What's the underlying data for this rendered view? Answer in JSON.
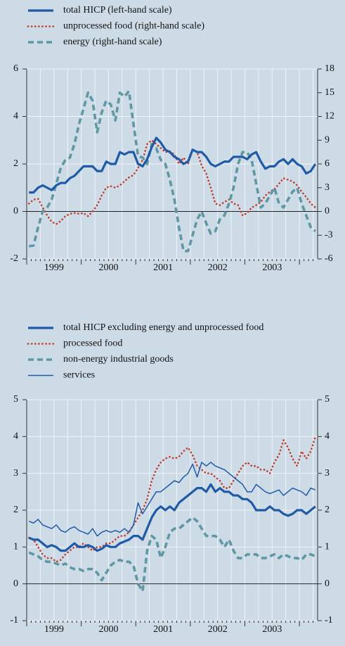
{
  "chart_data": [
    {
      "type": "line",
      "categories": [
        null,
        null,
        null,
        null,
        null,
        null,
        "1999",
        null,
        null,
        null,
        null,
        null,
        null,
        null,
        null,
        null,
        null,
        null,
        "2000",
        null,
        null,
        null,
        null,
        null,
        null,
        null,
        null,
        null,
        null,
        null,
        "2001",
        null,
        null,
        null,
        null,
        null,
        null,
        null,
        null,
        null,
        null,
        null,
        "2002",
        null,
        null,
        null,
        null,
        null,
        null,
        null,
        null,
        null,
        null,
        null,
        "2003",
        null,
        null,
        null,
        null,
        null,
        null,
        null,
        null,
        null
      ],
      "ylim": [
        -2,
        6
      ],
      "yticks": [
        -2,
        0,
        2,
        4,
        6
      ],
      "y2lim": [
        -6,
        18
      ],
      "y2ticks": [
        -6,
        -3,
        0,
        3,
        6,
        9,
        12,
        15,
        18
      ],
      "grid": true,
      "series": [
        {
          "name": "total HICP (left-hand scale)",
          "color": "#1f5aa6",
          "style": "solid",
          "weight": "thick",
          "values": [
            0.8,
            0.8,
            1.0,
            1.1,
            1.0,
            0.9,
            1.1,
            1.2,
            1.2,
            1.4,
            1.5,
            1.7,
            1.9,
            1.9,
            1.9,
            1.7,
            1.7,
            2.1,
            2.0,
            2.0,
            2.5,
            2.4,
            2.5,
            2.5,
            2.0,
            1.9,
            2.2,
            2.7,
            3.1,
            2.9,
            2.6,
            2.5,
            2.3,
            2.2,
            2.0,
            2.1,
            2.6,
            2.5,
            2.5,
            2.3,
            2.0,
            1.9,
            2.0,
            2.1,
            2.1,
            2.3,
            2.3,
            2.3,
            2.2,
            2.4,
            2.5,
            2.1,
            1.8,
            1.9,
            1.9,
            2.1,
            2.2,
            2.0,
            2.2,
            2.0,
            1.9,
            1.6,
            1.7,
            2.0
          ]
        },
        {
          "name": "unprocessed food (right-hand scale)",
          "color": "#c0392b",
          "style": "dotted",
          "weight": "thick",
          "axis": "y2",
          "values": [
            1.0,
            1.5,
            1.6,
            0.5,
            -0.5,
            -1.3,
            -1.6,
            -1.2,
            -0.6,
            -0.3,
            -0.2,
            -0.3,
            -0.2,
            -0.6,
            0.0,
            0.8,
            2.0,
            3.0,
            3.2,
            3.0,
            3.3,
            3.8,
            4.3,
            4.6,
            5.5,
            6.5,
            8.5,
            9.0,
            8.5,
            8.0,
            7.5,
            7.6,
            7.2,
            6.0,
            6.8,
            6.0,
            7.8,
            7.5,
            5.8,
            4.8,
            3.0,
            1.0,
            0.8,
            1.2,
            1.5,
            1.0,
            0.8,
            -0.5,
            -0.2,
            0.5,
            0.8,
            1.2,
            2.0,
            2.5,
            2.8,
            3.5,
            4.2,
            4.0,
            3.8,
            3.3,
            2.5,
            1.8,
            1.0,
            0.5
          ]
        },
        {
          "name": "energy (right-hand scale)",
          "color": "#5f97a3",
          "style": "dashed",
          "weight": "thick",
          "axis": "y2",
          "values": [
            -4.4,
            -4.3,
            -2.0,
            0.0,
            0.5,
            1.5,
            3.5,
            5.5,
            6.5,
            6.8,
            8.5,
            11.0,
            13.0,
            15.0,
            14.0,
            10.0,
            12.5,
            14.0,
            13.5,
            11.5,
            15.0,
            14.5,
            15.2,
            11.0,
            7.0,
            6.8,
            6.0,
            8.5,
            8.0,
            6.5,
            6.0,
            4.0,
            1.5,
            -2.0,
            -5.0,
            -5.0,
            -3.0,
            -1.0,
            0.0,
            -1.5,
            -2.8,
            -2.5,
            -1.0,
            -0.5,
            1.0,
            3.0,
            6.0,
            7.5,
            7.5,
            6.5,
            3.5,
            0.5,
            1.0,
            2.0,
            3.0,
            1.0,
            0.5,
            1.5,
            2.5,
            3.0,
            1.0,
            -0.5,
            -2.0,
            -2.5
          ]
        }
      ]
    },
    {
      "type": "line",
      "categories": [
        null,
        null,
        null,
        null,
        null,
        null,
        "1999",
        null,
        null,
        null,
        null,
        null,
        null,
        null,
        null,
        null,
        null,
        null,
        "2000",
        null,
        null,
        null,
        null,
        null,
        null,
        null,
        null,
        null,
        null,
        null,
        "2001",
        null,
        null,
        null,
        null,
        null,
        null,
        null,
        null,
        null,
        null,
        null,
        "2002",
        null,
        null,
        null,
        null,
        null,
        null,
        null,
        null,
        null,
        null,
        null,
        "2003",
        null,
        null,
        null,
        null,
        null,
        null,
        null,
        null,
        null
      ],
      "ylim": [
        -1,
        5
      ],
      "yticks": [
        -1,
        0,
        1,
        2,
        3,
        4,
        5
      ],
      "y2lim": [
        -1,
        5
      ],
      "y2ticks": [
        -1,
        0,
        1,
        2,
        3,
        4,
        5
      ],
      "grid": true,
      "series": [
        {
          "name": "total HICP excluding energy and unprocessed food",
          "color": "#1f5aa6",
          "style": "solid",
          "weight": "thick",
          "values": [
            1.25,
            1.2,
            1.2,
            1.1,
            1.0,
            1.05,
            1.0,
            0.9,
            0.9,
            1.0,
            1.1,
            1.0,
            1.0,
            1.05,
            1.0,
            0.9,
            0.95,
            1.05,
            1.0,
            1.0,
            1.1,
            1.15,
            1.2,
            1.3,
            1.3,
            1.2,
            1.5,
            1.8,
            2.0,
            2.1,
            2.0,
            2.1,
            2.0,
            2.2,
            2.3,
            2.4,
            2.5,
            2.6,
            2.6,
            2.5,
            2.7,
            2.5,
            2.6,
            2.5,
            2.5,
            2.4,
            2.4,
            2.3,
            2.3,
            2.2,
            2.0,
            2.0,
            2.0,
            2.1,
            2.0,
            2.0,
            1.9,
            1.85,
            1.9,
            2.0,
            2.0,
            1.9,
            2.0,
            2.1
          ]
        },
        {
          "name": "processed food",
          "color": "#c0392b",
          "style": "dotted",
          "weight": "thick",
          "values": [
            1.25,
            1.2,
            1.0,
            0.8,
            0.7,
            0.7,
            0.6,
            0.65,
            0.8,
            0.9,
            1.0,
            1.0,
            1.1,
            1.0,
            0.9,
            1.0,
            1.0,
            1.1,
            1.1,
            1.2,
            1.3,
            1.3,
            1.4,
            1.6,
            1.8,
            2.0,
            2.3,
            2.8,
            3.1,
            3.3,
            3.4,
            3.45,
            3.4,
            3.45,
            3.6,
            3.7,
            3.5,
            3.2,
            3.1,
            3.0,
            3.0,
            2.9,
            2.8,
            2.6,
            2.6,
            2.8,
            3.0,
            3.2,
            3.3,
            3.2,
            3.2,
            3.1,
            3.1,
            3.0,
            3.3,
            3.5,
            3.9,
            3.7,
            3.4,
            3.2,
            3.6,
            3.4,
            3.6,
            4.0
          ]
        },
        {
          "name": "non-energy industrial goods",
          "color": "#5f97a3",
          "style": "dashed",
          "weight": "thick",
          "values": [
            0.85,
            0.8,
            0.75,
            0.65,
            0.6,
            0.6,
            0.55,
            0.5,
            0.55,
            0.45,
            0.4,
            0.4,
            0.35,
            0.4,
            0.4,
            0.3,
            0.1,
            0.3,
            0.5,
            0.6,
            0.65,
            0.6,
            0.6,
            0.5,
            0.0,
            -0.2,
            0.9,
            1.3,
            1.2,
            0.7,
            1.0,
            1.4,
            1.5,
            1.5,
            1.6,
            1.7,
            1.8,
            1.7,
            1.5,
            1.3,
            1.3,
            1.3,
            1.2,
            1.0,
            1.2,
            0.9,
            0.7,
            0.7,
            0.8,
            0.8,
            0.8,
            0.7,
            0.7,
            0.75,
            0.8,
            0.7,
            0.8,
            0.75,
            0.7,
            0.7,
            0.65,
            0.8,
            0.8,
            0.75
          ]
        },
        {
          "name": "services",
          "color": "#1f5aa6",
          "style": "solid",
          "weight": "thin",
          "values": [
            1.7,
            1.65,
            1.75,
            1.6,
            1.55,
            1.5,
            1.6,
            1.45,
            1.4,
            1.5,
            1.55,
            1.45,
            1.4,
            1.35,
            1.5,
            1.3,
            1.4,
            1.45,
            1.4,
            1.45,
            1.4,
            1.5,
            1.4,
            1.6,
            2.2,
            1.9,
            2.1,
            2.3,
            2.5,
            2.5,
            2.6,
            2.7,
            2.8,
            2.75,
            2.9,
            3.0,
            3.25,
            2.9,
            3.3,
            3.2,
            3.3,
            3.2,
            3.15,
            3.1,
            3.0,
            2.9,
            2.8,
            2.7,
            2.5,
            2.5,
            2.7,
            2.6,
            2.5,
            2.45,
            2.5,
            2.55,
            2.4,
            2.5,
            2.6,
            2.55,
            2.5,
            2.4,
            2.6,
            2.55
          ]
        }
      ]
    }
  ]
}
